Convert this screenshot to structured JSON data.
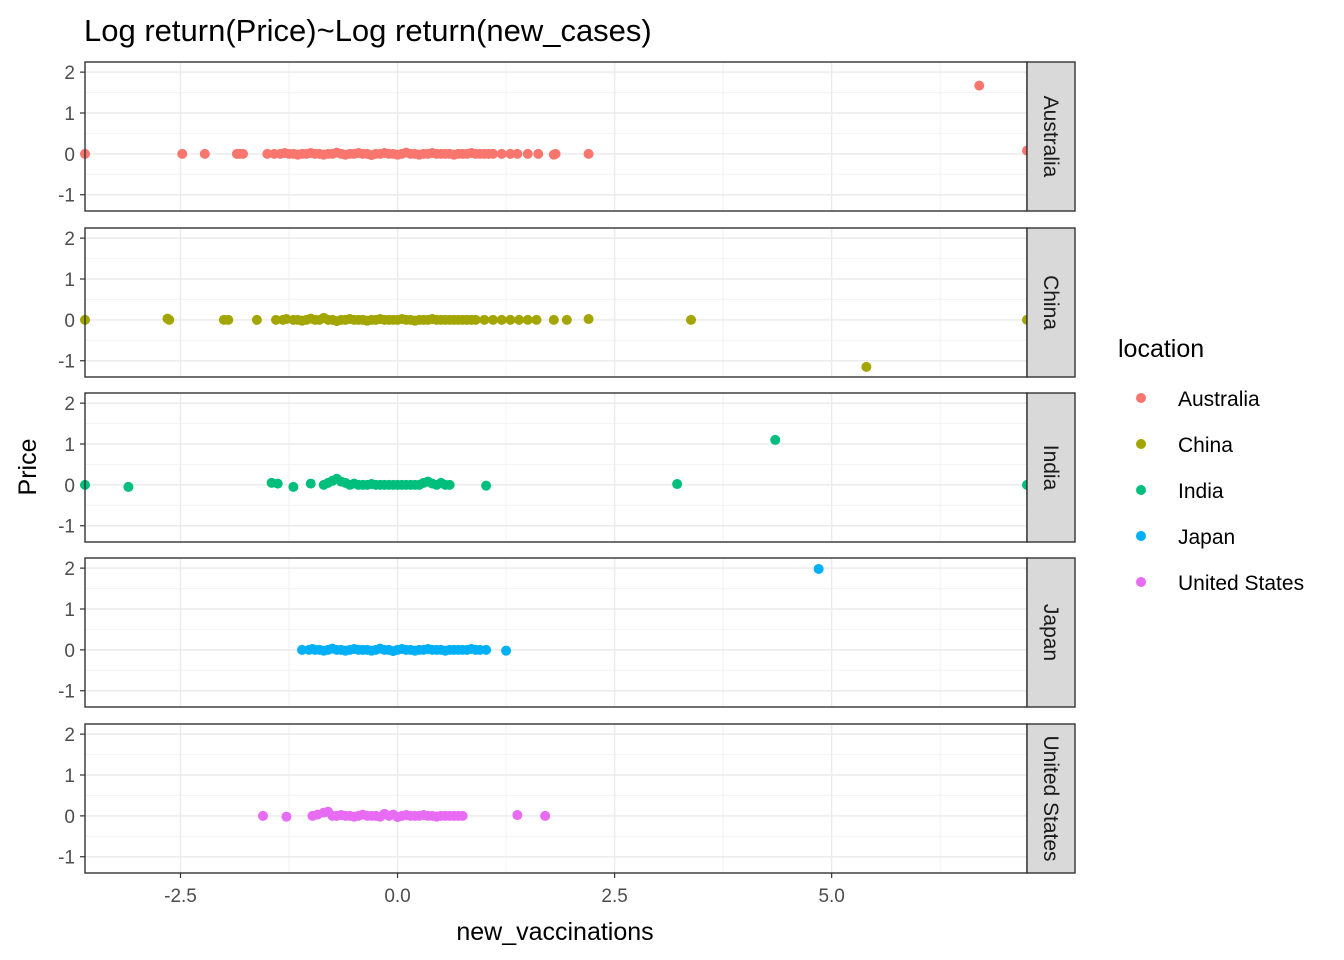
{
  "chart_data": {
    "type": "scatter",
    "title": "Log return(Price)~Log return(new_cases)",
    "xlabel": "new_vaccinations",
    "ylabel": "Price",
    "xlim": [
      -3.6,
      7.25
    ],
    "ylim": [
      -1.3,
      2.15
    ],
    "x_ticks": [
      -2.5,
      0.0,
      2.5,
      5.0
    ],
    "x_tick_labels": [
      "-2.5",
      "0.0",
      "2.5",
      "5.0"
    ],
    "y_ticks": [
      -1,
      0,
      1,
      2
    ],
    "y_tick_labels": [
      "-1",
      "0",
      "1",
      "2"
    ],
    "grid": true,
    "legend": {
      "title": "location",
      "position": "right"
    },
    "facets": [
      {
        "name": "Australia",
        "color": "#F8766D",
        "x": [
          -3.6,
          -2.48,
          -2.22,
          -1.85,
          -1.82,
          -1.78,
          -1.5,
          -1.42,
          -1.35,
          -1.3,
          -1.25,
          -1.2,
          -1.15,
          -1.1,
          -1.05,
          -1.0,
          -0.95,
          -0.9,
          -0.85,
          -0.8,
          -0.75,
          -0.7,
          -0.65,
          -0.6,
          -0.55,
          -0.5,
          -0.45,
          -0.4,
          -0.35,
          -0.3,
          -0.25,
          -0.2,
          -0.15,
          -0.1,
          -0.05,
          0.0,
          0.05,
          0.1,
          0.15,
          0.2,
          0.25,
          0.3,
          0.35,
          0.4,
          0.45,
          0.5,
          0.55,
          0.6,
          0.65,
          0.7,
          0.75,
          0.8,
          0.85,
          0.9,
          0.95,
          1.0,
          1.05,
          1.1,
          1.2,
          1.3,
          1.38,
          1.5,
          1.62,
          1.8,
          1.82,
          2.2,
          6.7,
          7.25
        ],
        "y": [
          0,
          0,
          0,
          0,
          0,
          0,
          0,
          0,
          0,
          0.02,
          0,
          0,
          -0.02,
          0,
          0,
          0.02,
          0,
          0,
          -0.02,
          0,
          0,
          0.03,
          0,
          -0.02,
          0,
          0,
          0.02,
          0,
          0,
          -0.03,
          0,
          0,
          0.02,
          0,
          0,
          -0.02,
          0,
          0.03,
          0,
          0,
          -0.02,
          0,
          0,
          0.02,
          0,
          0,
          0,
          0,
          -0.02,
          0,
          0,
          0,
          0.02,
          0,
          0,
          0,
          0,
          0,
          0,
          0,
          0,
          0,
          0,
          -0.02,
          0,
          0,
          1.67,
          0.08
        ]
      },
      {
        "name": "China",
        "color": "#A3A500",
        "x": [
          -3.6,
          -2.65,
          -2.63,
          -2.0,
          -1.95,
          -1.62,
          -1.4,
          -1.32,
          -1.28,
          -1.2,
          -1.15,
          -1.1,
          -1.05,
          -1.0,
          -0.95,
          -0.9,
          -0.85,
          -0.8,
          -0.75,
          -0.7,
          -0.65,
          -0.6,
          -0.55,
          -0.5,
          -0.45,
          -0.4,
          -0.35,
          -0.3,
          -0.25,
          -0.2,
          -0.15,
          -0.1,
          -0.05,
          0.0,
          0.05,
          0.1,
          0.15,
          0.2,
          0.25,
          0.3,
          0.35,
          0.4,
          0.45,
          0.5,
          0.55,
          0.6,
          0.65,
          0.7,
          0.75,
          0.8,
          0.85,
          0.9,
          1.0,
          1.1,
          1.2,
          1.3,
          1.4,
          1.5,
          1.6,
          1.8,
          1.95,
          2.2,
          3.38,
          5.4,
          7.25
        ],
        "y": [
          0,
          0.03,
          0,
          0,
          0,
          0,
          0,
          0,
          0.02,
          0,
          0,
          -0.02,
          0,
          0.03,
          0,
          0,
          0.05,
          0,
          0,
          -0.03,
          0,
          0,
          0.02,
          0,
          0,
          0,
          -0.02,
          0,
          0,
          0.02,
          0,
          0,
          0,
          0,
          0.02,
          0,
          0,
          -0.02,
          0,
          0,
          0,
          0.02,
          0,
          0,
          0,
          0,
          0,
          0,
          0,
          0,
          0,
          0,
          0,
          0,
          0,
          0,
          0,
          0,
          0,
          0,
          0,
          0.02,
          0,
          -1.15,
          0
        ]
      },
      {
        "name": "India",
        "color": "#00BF7D",
        "x": [
          -3.6,
          -3.1,
          -1.45,
          -1.38,
          -1.2,
          -1.0,
          -0.85,
          -0.8,
          -0.75,
          -0.7,
          -0.65,
          -0.6,
          -0.55,
          -0.5,
          -0.45,
          -0.4,
          -0.35,
          -0.3,
          -0.25,
          -0.2,
          -0.15,
          -0.1,
          -0.05,
          0.0,
          0.05,
          0.1,
          0.15,
          0.2,
          0.25,
          0.3,
          0.35,
          0.4,
          0.45,
          0.5,
          0.55,
          0.6,
          1.02,
          3.22,
          4.35,
          7.25
        ],
        "y": [
          0,
          -0.05,
          0.05,
          0.03,
          -0.05,
          0.03,
          0,
          0.05,
          0.1,
          0.15,
          0.08,
          0.05,
          0,
          0.03,
          0,
          0,
          0,
          0.02,
          0,
          0,
          0,
          0,
          0,
          0,
          0,
          0,
          0,
          0,
          0,
          0.05,
          0.08,
          0.03,
          0,
          0.05,
          0,
          0,
          -0.02,
          0.02,
          1.1,
          0
        ]
      },
      {
        "name": "Japan",
        "color": "#00B0F6",
        "x": [
          -1.1,
          -1.02,
          -0.98,
          -0.95,
          -0.9,
          -0.85,
          -0.8,
          -0.75,
          -0.7,
          -0.65,
          -0.6,
          -0.55,
          -0.5,
          -0.45,
          -0.4,
          -0.35,
          -0.3,
          -0.25,
          -0.2,
          -0.15,
          -0.1,
          -0.05,
          0.0,
          0.05,
          0.1,
          0.15,
          0.2,
          0.25,
          0.3,
          0.35,
          0.4,
          0.45,
          0.5,
          0.55,
          0.6,
          0.65,
          0.7,
          0.75,
          0.8,
          0.85,
          0.9,
          0.95,
          1.02,
          1.25,
          4.85
        ],
        "y": [
          0,
          0,
          0.02,
          0,
          0,
          -0.02,
          0,
          0.03,
          0,
          0,
          -0.02,
          0,
          0.02,
          0,
          0,
          0,
          -0.02,
          0,
          0.03,
          0,
          0,
          -0.03,
          0,
          0.02,
          0,
          0,
          -0.02,
          0,
          0,
          0.02,
          0,
          0,
          0,
          -0.02,
          0,
          0,
          0,
          0,
          0,
          0.02,
          0,
          0,
          0,
          -0.02,
          1.98
        ]
      },
      {
        "name": "United States",
        "color": "#E76BF3",
        "x": [
          -1.55,
          -1.28,
          -0.98,
          -0.92,
          -0.85,
          -0.8,
          -0.75,
          -0.7,
          -0.65,
          -0.6,
          -0.55,
          -0.5,
          -0.45,
          -0.4,
          -0.35,
          -0.3,
          -0.25,
          -0.2,
          -0.15,
          -0.1,
          -0.05,
          0.0,
          0.05,
          0.1,
          0.15,
          0.2,
          0.25,
          0.3,
          0.35,
          0.4,
          0.45,
          0.5,
          0.55,
          0.6,
          0.65,
          0.7,
          0.75,
          1.38,
          1.7
        ],
        "y": [
          0,
          -0.02,
          0,
          0.03,
          0.08,
          0.1,
          0,
          0,
          0.02,
          0,
          0,
          -0.02,
          0,
          0.03,
          0,
          0,
          0,
          -0.02,
          0.05,
          0,
          0.03,
          -0.03,
          0,
          0.02,
          0,
          0,
          0,
          0.02,
          0,
          0,
          -0.02,
          0,
          0,
          0,
          0,
          0,
          0,
          0.02,
          0
        ]
      }
    ]
  }
}
